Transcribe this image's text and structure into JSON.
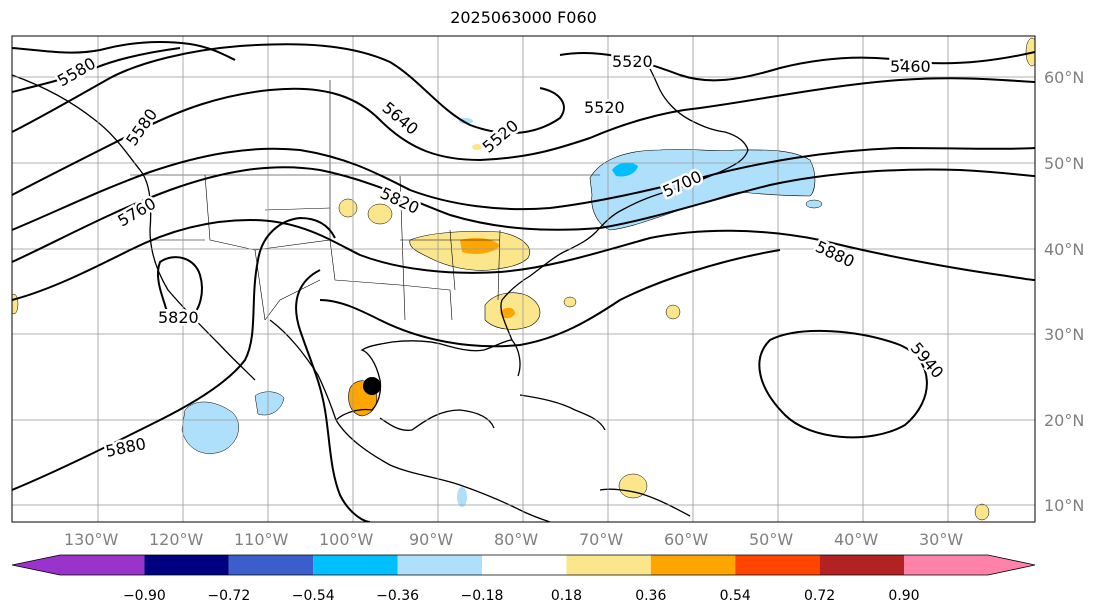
{
  "title": "2025063000 F060",
  "lat_labels": [
    "60°N",
    "50°N",
    "40°N",
    "30°N",
    "20°N",
    "10°N"
  ],
  "lon_labels": [
    "130°W",
    "120°W",
    "110°W",
    "100°W",
    "90°W",
    "80°W",
    "70°W",
    "60°W",
    "50°W",
    "40°W",
    "30°W"
  ],
  "contour_labels": [
    "5580",
    "5580",
    "5520",
    "5520",
    "5460",
    "5640",
    "5520",
    "5760",
    "5820",
    "5700",
    "5880",
    "5820",
    "5880",
    "5940"
  ],
  "colorbar": {
    "ticks": [
      "−0.90",
      "−0.72",
      "−0.54",
      "−0.36",
      "−0.18",
      "0.18",
      "0.36",
      "0.54",
      "0.72",
      "0.90"
    ],
    "colors": [
      "#9933cc",
      "#000080",
      "#3a5fcd",
      "#00bfff",
      "#afe0fb",
      "#ffffff",
      "#fce68c",
      "#ffa500",
      "#ff4500",
      "#b22222",
      "#ff82ab"
    ]
  },
  "marker": "storm-center"
}
